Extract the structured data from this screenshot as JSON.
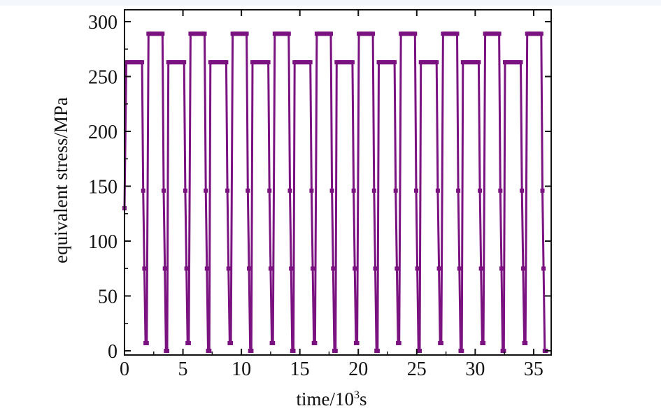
{
  "chart_data": {
    "type": "line",
    "xlabel_main": "time/10",
    "xlabel_sup": "3",
    "xlabel_unit": "s",
    "ylabel": "equivalent stress/MPa",
    "xlim": [
      0,
      36.5
    ],
    "ylim": [
      0,
      300
    ],
    "x_ticks": [
      "0",
      "5",
      "10",
      "15",
      "20",
      "25",
      "30",
      "35"
    ],
    "x_tick_values": [
      0,
      5,
      10,
      15,
      20,
      25,
      30,
      35
    ],
    "y_ticks": [
      "0",
      "50",
      "100",
      "150",
      "200",
      "250",
      "300"
    ],
    "y_tick_values": [
      0,
      50,
      100,
      150,
      200,
      250,
      300
    ],
    "grid": false,
    "colors": {
      "series": "#7a1280",
      "axis": "#111111"
    },
    "marker": "square",
    "series": [
      {
        "x": [
          0.0,
          0.15,
          0.3,
          0.45,
          0.6,
          0.75,
          0.9,
          1.05,
          1.2,
          1.35,
          1.5,
          1.6,
          1.7,
          1.8,
          1.85,
          1.9,
          2.05,
          2.2,
          2.35,
          2.5,
          2.65,
          2.8,
          2.95,
          3.1,
          3.25,
          3.35,
          3.45,
          3.55,
          3.65,
          3.65,
          3.75,
          3.9,
          4.05,
          4.2,
          4.35,
          4.5,
          4.65,
          4.8,
          4.95,
          5.1,
          5.2,
          5.3,
          5.4,
          5.45,
          5.5,
          5.65,
          5.8,
          5.95,
          6.1,
          6.25,
          6.4,
          6.55,
          6.7,
          6.85,
          6.95,
          7.05,
          7.15,
          7.25,
          7.25,
          7.35,
          7.5,
          7.65,
          7.8,
          7.95,
          8.1,
          8.25,
          8.4,
          8.55,
          8.7,
          8.8,
          8.9,
          9.0,
          9.05,
          9.1,
          9.25,
          9.4,
          9.55,
          9.7,
          9.85,
          10.0,
          10.15,
          10.3,
          10.45,
          10.55,
          10.65,
          10.75,
          10.85,
          10.85,
          10.95,
          11.1,
          11.25,
          11.4,
          11.55,
          11.7,
          11.85,
          12.0,
          12.15,
          12.3,
          12.4,
          12.5,
          12.6,
          12.65,
          12.7,
          12.85,
          13.0,
          13.15,
          13.3,
          13.45,
          13.6,
          13.75,
          13.9,
          14.05,
          14.15,
          14.25,
          14.35,
          14.45,
          14.45,
          14.55,
          14.7,
          14.85,
          15.0,
          15.15,
          15.3,
          15.45,
          15.6,
          15.75,
          15.9,
          16.0,
          16.1,
          16.2,
          16.25,
          16.3,
          16.45,
          16.6,
          16.75,
          16.9,
          17.05,
          17.2,
          17.35,
          17.5,
          17.65,
          17.75,
          17.85,
          17.95,
          18.05,
          18.05,
          18.15,
          18.3,
          18.45,
          18.6,
          18.75,
          18.9,
          19.05,
          19.2,
          19.35,
          19.5,
          19.6,
          19.7,
          19.8,
          19.85,
          19.9,
          20.05,
          20.2,
          20.35,
          20.5,
          20.65,
          20.8,
          20.95,
          21.1,
          21.25,
          21.35,
          21.45,
          21.55,
          21.65,
          21.65,
          21.75,
          21.9,
          22.05,
          22.2,
          22.35,
          22.5,
          22.65,
          22.8,
          22.95,
          23.1,
          23.2,
          23.3,
          23.4,
          23.45,
          23.5,
          23.65,
          23.8,
          23.95,
          24.1,
          24.25,
          24.4,
          24.55,
          24.7,
          24.85,
          24.95,
          25.05,
          25.15,
          25.25,
          25.25,
          25.35,
          25.5,
          25.65,
          25.8,
          25.95,
          26.1,
          26.25,
          26.4,
          26.55,
          26.7,
          26.8,
          26.9,
          27.0,
          27.05,
          27.1,
          27.25,
          27.4,
          27.55,
          27.7,
          27.85,
          28.0,
          28.15,
          28.3,
          28.45,
          28.55,
          28.65,
          28.75,
          28.85,
          28.85,
          28.95,
          29.1,
          29.25,
          29.4,
          29.55,
          29.7,
          29.85,
          30.0,
          30.15,
          30.3,
          30.4,
          30.5,
          30.6,
          30.65,
          30.7,
          30.85,
          31.0,
          31.15,
          31.3,
          31.45,
          31.6,
          31.75,
          31.9,
          32.05,
          32.15,
          32.25,
          32.35,
          32.45,
          32.45,
          32.55,
          32.7,
          32.85,
          33.0,
          33.15,
          33.3,
          33.45,
          33.6,
          33.75,
          33.9,
          34.0,
          34.1,
          34.2,
          34.25,
          34.3,
          34.45,
          34.6,
          34.75,
          34.9,
          35.05,
          35.2,
          35.35,
          35.5,
          35.65,
          35.75,
          35.85,
          35.95,
          36.05
        ],
        "y": [
          130,
          263,
          263,
          263,
          263,
          263,
          263,
          263,
          263,
          263,
          263,
          146,
          75,
          7,
          7,
          7,
          289,
          289,
          289,
          289,
          289,
          289,
          289,
          289,
          289,
          146,
          75,
          0,
          0,
          0,
          263,
          263,
          263,
          263,
          263,
          263,
          263,
          263,
          263,
          263,
          146,
          75,
          7,
          7,
          7,
          289,
          289,
          289,
          289,
          289,
          289,
          289,
          289,
          289,
          146,
          75,
          0,
          0,
          0,
          263,
          263,
          263,
          263,
          263,
          263,
          263,
          263,
          263,
          263,
          146,
          75,
          7,
          7,
          7,
          289,
          289,
          289,
          289,
          289,
          289,
          289,
          289,
          289,
          146,
          75,
          0,
          0,
          0,
          263,
          263,
          263,
          263,
          263,
          263,
          263,
          263,
          263,
          263,
          146,
          75,
          7,
          7,
          7,
          289,
          289,
          289,
          289,
          289,
          289,
          289,
          289,
          289,
          146,
          75,
          0,
          0,
          0,
          263,
          263,
          263,
          263,
          263,
          263,
          263,
          263,
          263,
          263,
          146,
          75,
          7,
          7,
          7,
          289,
          289,
          289,
          289,
          289,
          289,
          289,
          289,
          289,
          146,
          75,
          0,
          0,
          0,
          263,
          263,
          263,
          263,
          263,
          263,
          263,
          263,
          263,
          263,
          146,
          75,
          7,
          7,
          7,
          289,
          289,
          289,
          289,
          289,
          289,
          289,
          289,
          289,
          146,
          75,
          0,
          0,
          0,
          263,
          263,
          263,
          263,
          263,
          263,
          263,
          263,
          263,
          263,
          146,
          75,
          7,
          7,
          7,
          289,
          289,
          289,
          289,
          289,
          289,
          289,
          289,
          289,
          146,
          75,
          0,
          0,
          0,
          263,
          263,
          263,
          263,
          263,
          263,
          263,
          263,
          263,
          263,
          146,
          75,
          7,
          7,
          7,
          289,
          289,
          289,
          289,
          289,
          289,
          289,
          289,
          289,
          146,
          75,
          0,
          0,
          0,
          263,
          263,
          263,
          263,
          263,
          263,
          263,
          263,
          263,
          263,
          146,
          75,
          7,
          7,
          7,
          289,
          289,
          289,
          289,
          289,
          289,
          289,
          289,
          289,
          146,
          75,
          0,
          0,
          0,
          263,
          263,
          263,
          263,
          263,
          263,
          263,
          263,
          263,
          263,
          146,
          75,
          7,
          7,
          7,
          289,
          289,
          289,
          289,
          289,
          289,
          289,
          289,
          289,
          146,
          75,
          0,
          0
        ]
      }
    ]
  }
}
